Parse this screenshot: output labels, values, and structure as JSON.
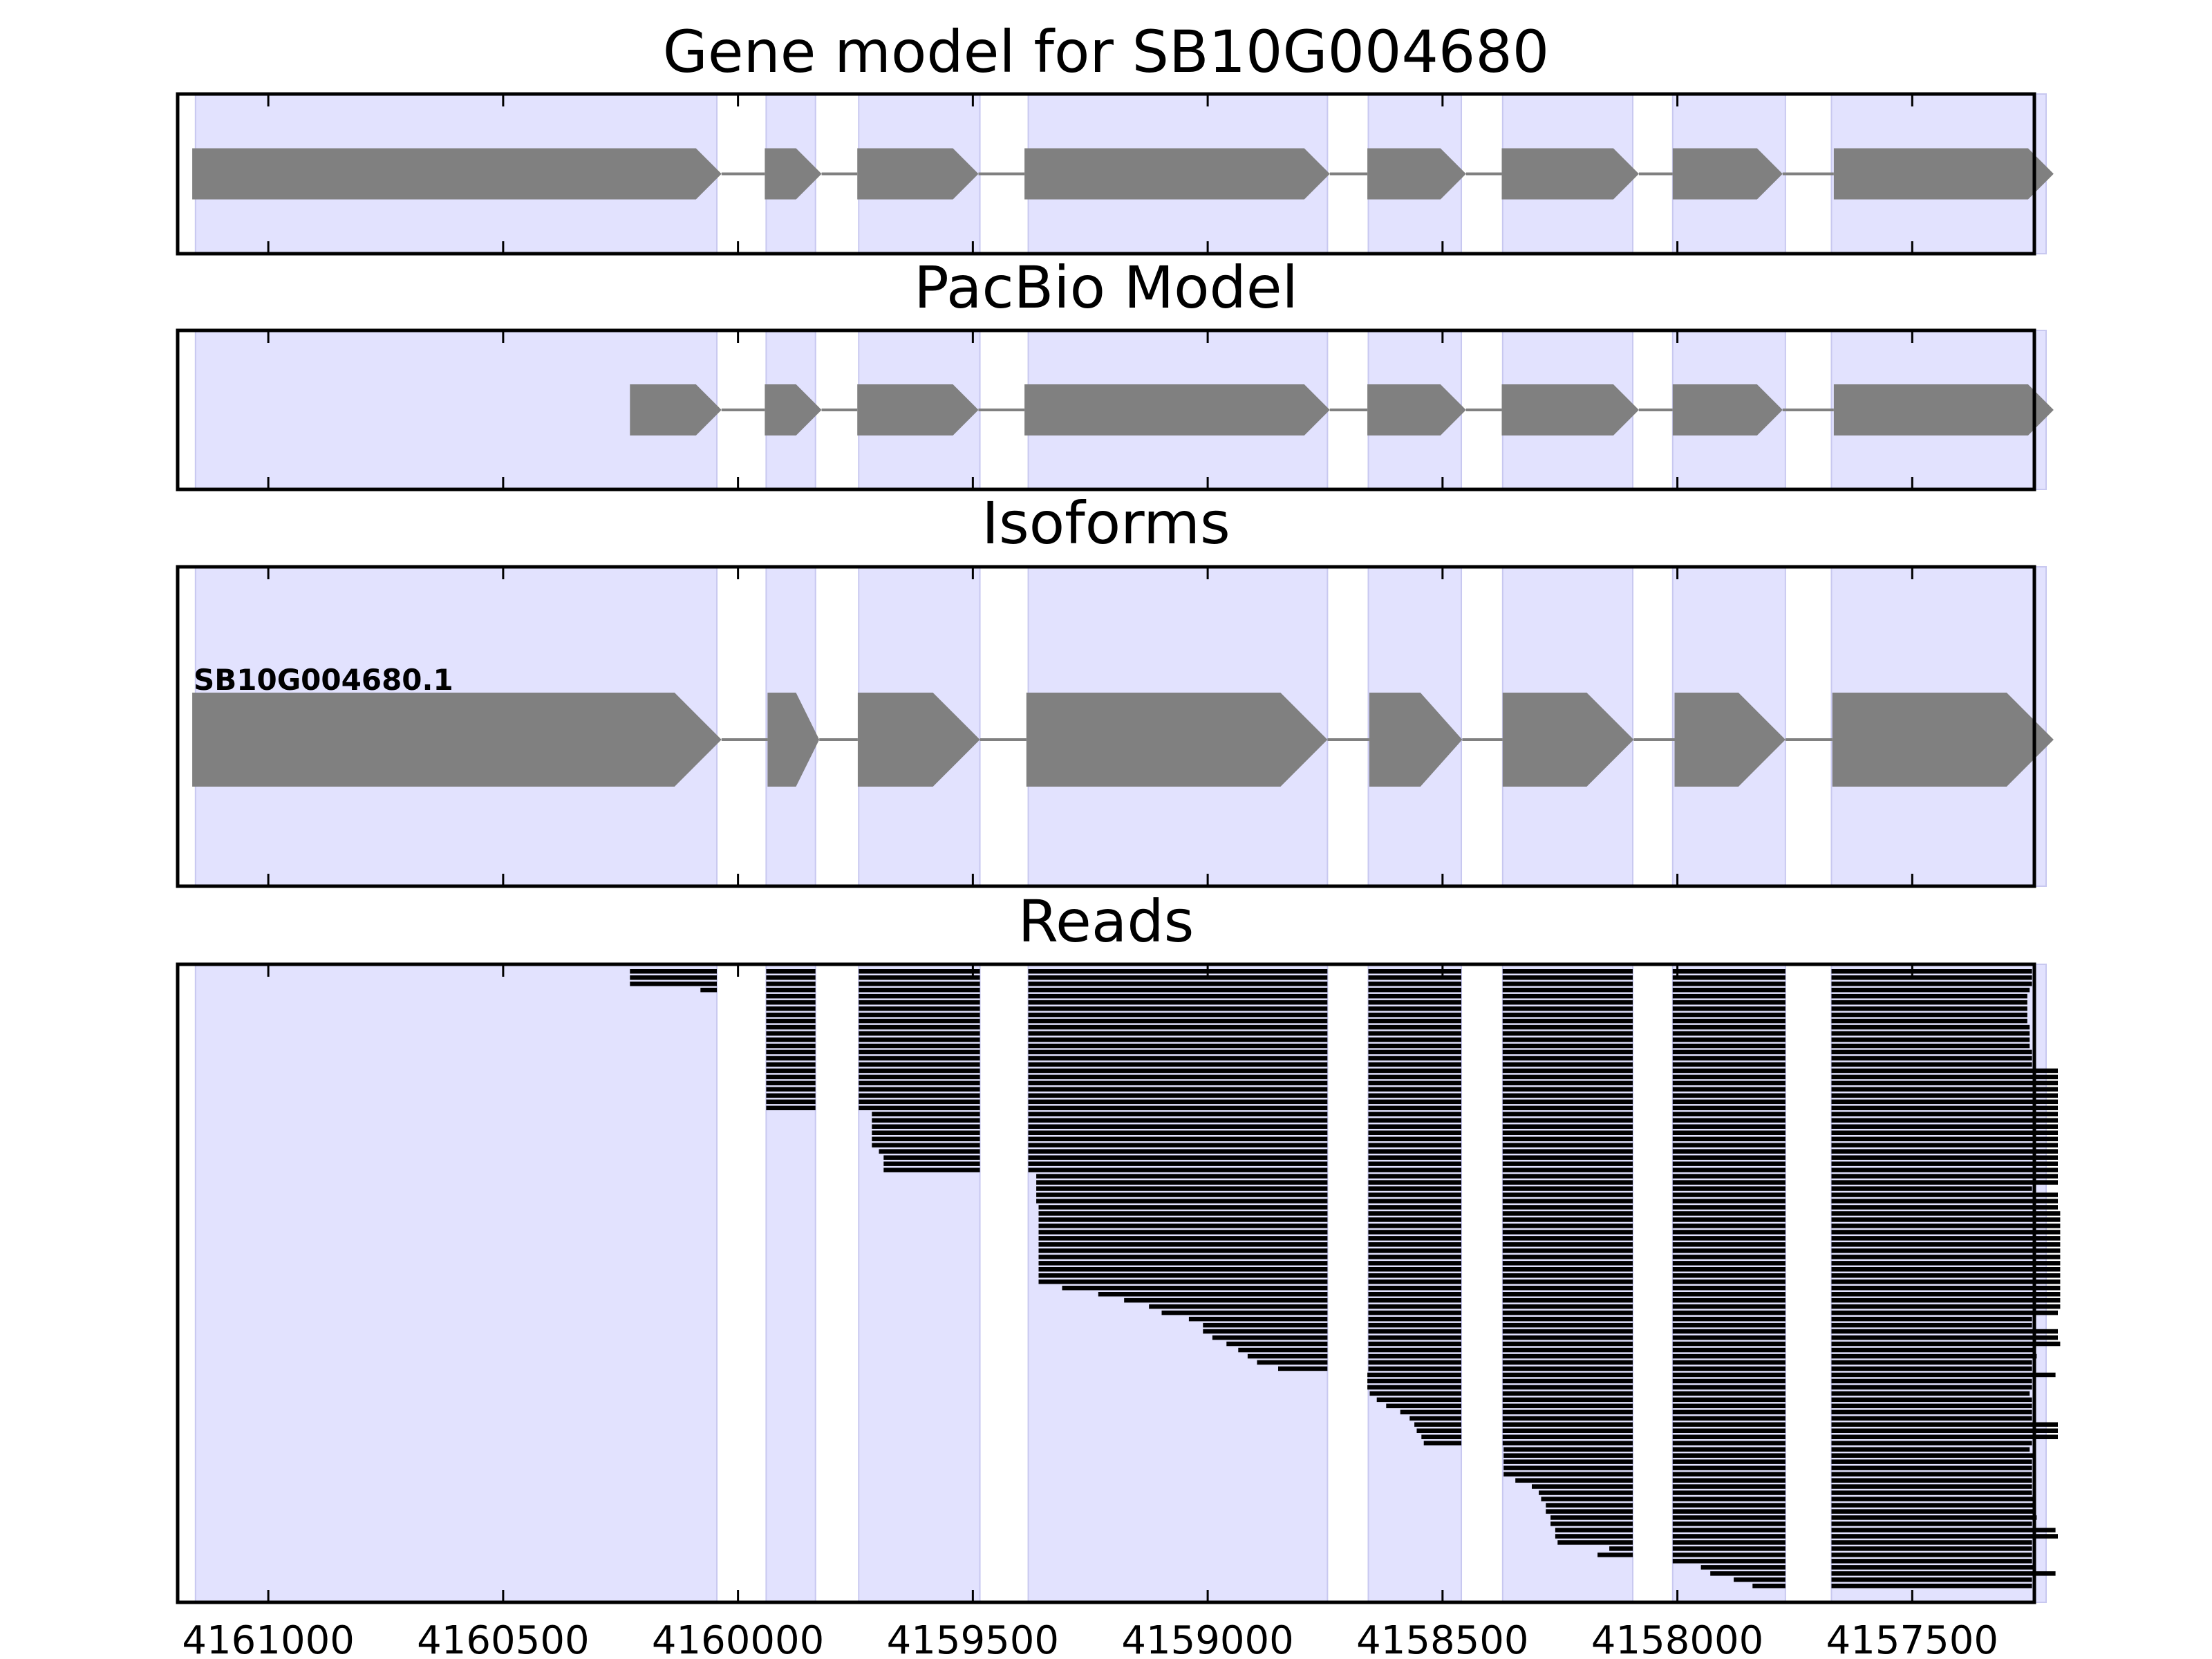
{
  "chart_data": {
    "type": "gene-track",
    "x_axis": {
      "reversed": true,
      "xlim": [
        4161193,
        4157240
      ],
      "tick_values": [
        4161000,
        4160500,
        4160000,
        4159500,
        4159000,
        4158500,
        4158000,
        4157500
      ],
      "tick_labels": [
        "4161000",
        "4160500",
        "4160000",
        "4159500",
        "4159000",
        "4158500",
        "4158000",
        "4157500"
      ]
    },
    "strand": "minus",
    "colors": {
      "exon": "#808080",
      "intron_line": "#808080",
      "shade": "#e2e2fe",
      "shade_edge": "#c8c8f0",
      "read": "#000000",
      "axes": "#000000"
    },
    "exon_regions": [
      [
        4161155,
        4160045
      ],
      [
        4159940,
        4159835
      ],
      [
        4159743,
        4159485
      ],
      [
        4159382,
        4158745
      ],
      [
        4158658,
        4158460
      ],
      [
        4158372,
        4158095
      ],
      [
        4158010,
        4157770
      ],
      [
        4157672,
        4157215
      ]
    ],
    "panels": [
      {
        "title": "Gene model for SB10G004680",
        "kind": "model",
        "blocks": [
          [
            4161162,
            4160035
          ],
          [
            4159943,
            4159822
          ],
          [
            4159746,
            4159488
          ],
          [
            4159390,
            4158740
          ],
          [
            4158660,
            4158450
          ],
          [
            4158374,
            4158082
          ],
          [
            4158010,
            4157776
          ],
          [
            4157667,
            4157199
          ]
        ]
      },
      {
        "title": "PacBio Model",
        "kind": "model",
        "blocks": [
          [
            4160230,
            4160035
          ],
          [
            4159943,
            4159822
          ],
          [
            4159746,
            4159488
          ],
          [
            4159390,
            4158740
          ],
          [
            4158660,
            4158450
          ],
          [
            4158374,
            4158082
          ],
          [
            4158010,
            4157776
          ],
          [
            4157667,
            4157199
          ]
        ]
      },
      {
        "title": "Isoforms",
        "kind": "isoforms",
        "isoforms": [
          {
            "label": "SB10G004680.1",
            "blocks": [
              [
                4161162,
                4160035
              ],
              [
                4159937,
                4159827
              ],
              [
                4159745,
                4159485
              ],
              [
                4159386,
                4158745
              ],
              [
                4158656,
                4158458
              ],
              [
                4158372,
                4158093
              ],
              [
                4158006,
                4157770
              ],
              [
                4157670,
                4157199
              ]
            ]
          }
        ]
      },
      {
        "title": "Reads",
        "kind": "reads",
        "read_count": 100,
        "exon_ends": [
          4160045,
          4159835,
          4159485,
          4158745,
          4158460,
          4158095,
          4157770
        ],
        "read_starts_first_exon": [
          4160230,
          4160230,
          4160230,
          4160080
        ],
        "read_starts_exon2": [
          4159940,
          4159940,
          4159940,
          4159940,
          4159940,
          4159940,
          4159940,
          4159940,
          4159940,
          4159940,
          4159940,
          4159940,
          4159940,
          4159940,
          4159940,
          4159940,
          4159940,
          4159940,
          4159940
        ],
        "read_starts_exon3": [
          4159715,
          4159715,
          4159715,
          4159715,
          4159715,
          4159715,
          4159700,
          4159690,
          4159690,
          4159690
        ],
        "read_starts_exon4": [
          4159365,
          4159365,
          4159365,
          4159365,
          4159365,
          4159360,
          4159360,
          4159360,
          4159360,
          4159360,
          4159360,
          4159360,
          4159360,
          4159360,
          4159360,
          4159360,
          4159360,
          4159360,
          4159310,
          4159233,
          4159178,
          4159125,
          4159098,
          4159040,
          4159010,
          4159010,
          4158990,
          4158960,
          4158935,
          4158915,
          4158895,
          4158850
        ],
        "read_starts_exon5": [
          4158660,
          4158660,
          4158660,
          4158655,
          4158640,
          4158620,
          4158590,
          4158570,
          4158560,
          4158555,
          4158545,
          4158540
        ],
        "read_starts_exon6": [
          4158370,
          4158370,
          4158370,
          4158370,
          4158370,
          4158345,
          4158310,
          4158295,
          4158290,
          4158280,
          4158280,
          4158270,
          4158270,
          4158260,
          4158260,
          4158255,
          4158145,
          4158170,
          4158055
        ],
        "read_starts_exon7": [
          4157950,
          4157930,
          4157880,
          4157840
        ],
        "read_ends": [
          4157245,
          4157245,
          4157245,
          4157250,
          4157255,
          4157255,
          4157255,
          4157255,
          4157255,
          4157250,
          4157250,
          4157250,
          4157250,
          4157245,
          4157245,
          4157245,
          4157190,
          4157190,
          4157190,
          4157190,
          4157190,
          4157190,
          4157190,
          4157190,
          4157190,
          4157190,
          4157190,
          4157190,
          4157190,
          4157190,
          4157190,
          4157190,
          4157190,
          4157190,
          4157190,
          4157245,
          4157190,
          4157190,
          4157190,
          4157185,
          4157185,
          4157185,
          4157185,
          4157185,
          4157185,
          4157185,
          4157185,
          4157185,
          4157185,
          4157185,
          4157185,
          4157185,
          4157185,
          4157185,
          4157185,
          4157190,
          4157245,
          4157245,
          4157190,
          4157190,
          4157185,
          4157240,
          4157235,
          4157245,
          4157245,
          4157195,
          4157245,
          4157245,
          4157250,
          4157245,
          4157245,
          4157245,
          4157245,
          4157190,
          4157190,
          4157190,
          4157245,
          4157250,
          4157240,
          4157245,
          4157245,
          4157245,
          4157245,
          4157245,
          4157245,
          4157240,
          4157240,
          4157240,
          4157235,
          4157245,
          4157195,
          4157190,
          4157245,
          4157245,
          4157245,
          4157245,
          4157240,
          4157195,
          4157245,
          4157245
        ]
      }
    ]
  }
}
